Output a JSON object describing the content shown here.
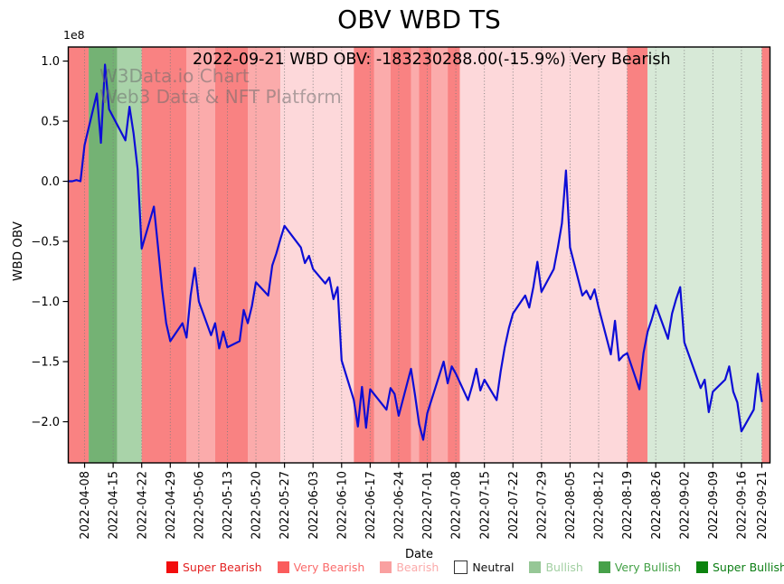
{
  "title": "OBV WBD TS",
  "subtitle": "2022-09-21 WBD OBV: -183230288.00(-15.9%) Very Bearish",
  "watermark": {
    "line1": "W3Data.io Chart",
    "line2": "Web3 Data & NFT Platform"
  },
  "chart_data": {
    "type": "line",
    "title": "OBV WBD TS",
    "xlabel": "Date",
    "ylabel": "WBD OBV",
    "y_offset_label": "1e8",
    "values_unit": "1e8",
    "ylim": [
      -2.342,
      1.117
    ],
    "x_domain": [
      "2022-04-04",
      "2022-09-23"
    ],
    "grid": "vertical-dotted",
    "line_color": "#0d0dd6",
    "y_ticks": [
      {
        "value": 1.0,
        "label": "1.0"
      },
      {
        "value": 0.5,
        "label": "0.5"
      },
      {
        "value": 0.0,
        "label": "0.0"
      },
      {
        "value": -0.5,
        "label": "−0.5"
      },
      {
        "value": -1.0,
        "label": "−1.0"
      },
      {
        "value": -1.5,
        "label": "−1.5"
      },
      {
        "value": -2.0,
        "label": "−2.0"
      }
    ],
    "x_ticks": [
      "2022-04-08",
      "2022-04-15",
      "2022-04-22",
      "2022-04-29",
      "2022-05-06",
      "2022-05-13",
      "2022-05-20",
      "2022-05-27",
      "2022-06-03",
      "2022-06-10",
      "2022-06-17",
      "2022-06-24",
      "2022-07-01",
      "2022-07-08",
      "2022-07-15",
      "2022-07-22",
      "2022-07-29",
      "2022-08-05",
      "2022-08-12",
      "2022-08-19",
      "2022-08-26",
      "2022-09-02",
      "2022-09-09",
      "2022-09-16",
      "2022-09-21"
    ],
    "bands": [
      {
        "from": "2022-04-04",
        "to": "2022-04-09",
        "sentiment": "Very Bearish",
        "color": "#f98282"
      },
      {
        "from": "2022-04-09",
        "to": "2022-04-16",
        "sentiment": "Very Bullish",
        "color": "#74b274"
      },
      {
        "from": "2022-04-16",
        "to": "2022-04-22",
        "sentiment": "Bullish",
        "color": "#a9d3a9"
      },
      {
        "from": "2022-04-22",
        "to": "2022-05-03",
        "sentiment": "Very Bearish",
        "color": "#f98282"
      },
      {
        "from": "2022-05-03",
        "to": "2022-05-10",
        "sentiment": "Bearish",
        "color": "#fbabab"
      },
      {
        "from": "2022-05-10",
        "to": "2022-05-18",
        "sentiment": "Very Bearish",
        "color": "#f98282"
      },
      {
        "from": "2022-05-18",
        "to": "2022-05-26",
        "sentiment": "Bearish",
        "color": "#fbabab"
      },
      {
        "from": "2022-05-26",
        "to": "2022-06-13",
        "sentiment": "Bearish",
        "color": "#fdd8da"
      },
      {
        "from": "2022-06-13",
        "to": "2022-06-18",
        "sentiment": "Very Bearish",
        "color": "#f98282"
      },
      {
        "from": "2022-06-18",
        "to": "2022-06-22",
        "sentiment": "Bearish",
        "color": "#fbabab"
      },
      {
        "from": "2022-06-22",
        "to": "2022-06-27",
        "sentiment": "Very Bearish",
        "color": "#f98282"
      },
      {
        "from": "2022-06-27",
        "to": "2022-06-29",
        "sentiment": "Bearish",
        "color": "#fbabab"
      },
      {
        "from": "2022-06-29",
        "to": "2022-07-02",
        "sentiment": "Very Bearish",
        "color": "#f98282"
      },
      {
        "from": "2022-07-02",
        "to": "2022-07-06",
        "sentiment": "Bearish",
        "color": "#fbabab"
      },
      {
        "from": "2022-07-06",
        "to": "2022-07-09",
        "sentiment": "Very Bearish",
        "color": "#f98282"
      },
      {
        "from": "2022-07-09",
        "to": "2022-08-19",
        "sentiment": "Bearish",
        "color": "#fdd8da"
      },
      {
        "from": "2022-08-19",
        "to": "2022-08-24",
        "sentiment": "Very Bearish",
        "color": "#f98282"
      },
      {
        "from": "2022-08-24",
        "to": "2022-09-21",
        "sentiment": "Bullish",
        "color": "#d7e9d7"
      },
      {
        "from": "2022-09-21",
        "to": "2022-09-23",
        "sentiment": "Very Bearish",
        "color": "#f98282"
      }
    ],
    "series": [
      {
        "name": "WBD OBV",
        "points_format": [
          "date",
          "obv_1e8"
        ],
        "points": [
          [
            "2022-04-04",
            0
          ],
          [
            "2022-04-05",
            0
          ],
          [
            "2022-04-06",
            0.01
          ],
          [
            "2022-04-07",
            0
          ],
          [
            "2022-04-08",
            0.3
          ],
          [
            "2022-04-11",
            0.73
          ],
          [
            "2022-04-12",
            0.32
          ],
          [
            "2022-04-13",
            0.97
          ],
          [
            "2022-04-14",
            0.6
          ],
          [
            "2022-04-18",
            0.34
          ],
          [
            "2022-04-19",
            0.62
          ],
          [
            "2022-04-20",
            0.4
          ],
          [
            "2022-04-21",
            0.1
          ],
          [
            "2022-04-22",
            -0.56
          ],
          [
            "2022-04-25",
            -0.21
          ],
          [
            "2022-04-26",
            -0.55
          ],
          [
            "2022-04-27",
            -0.9
          ],
          [
            "2022-04-28",
            -1.18
          ],
          [
            "2022-04-29",
            -1.33
          ],
          [
            "2022-05-02",
            -1.18
          ],
          [
            "2022-05-03",
            -1.3
          ],
          [
            "2022-05-04",
            -0.95
          ],
          [
            "2022-05-05",
            -0.72
          ],
          [
            "2022-05-06",
            -1.0
          ],
          [
            "2022-05-09",
            -1.28
          ],
          [
            "2022-05-10",
            -1.18
          ],
          [
            "2022-05-11",
            -1.39
          ],
          [
            "2022-05-12",
            -1.25
          ],
          [
            "2022-05-13",
            -1.38
          ],
          [
            "2022-05-16",
            -1.33
          ],
          [
            "2022-05-17",
            -1.07
          ],
          [
            "2022-05-18",
            -1.18
          ],
          [
            "2022-05-19",
            -1.04
          ],
          [
            "2022-05-20",
            -0.84
          ],
          [
            "2022-05-23",
            -0.95
          ],
          [
            "2022-05-24",
            -0.7
          ],
          [
            "2022-05-25",
            -0.6
          ],
          [
            "2022-05-26",
            -0.48
          ],
          [
            "2022-05-27",
            -0.37
          ],
          [
            "2022-05-31",
            -0.55
          ],
          [
            "2022-06-01",
            -0.68
          ],
          [
            "2022-06-02",
            -0.62
          ],
          [
            "2022-06-03",
            -0.73
          ],
          [
            "2022-06-06",
            -0.85
          ],
          [
            "2022-06-07",
            -0.8
          ],
          [
            "2022-06-08",
            -0.98
          ],
          [
            "2022-06-09",
            -0.88
          ],
          [
            "2022-06-10",
            -1.49
          ],
          [
            "2022-06-13",
            -1.82
          ],
          [
            "2022-06-14",
            -2.04
          ],
          [
            "2022-06-15",
            -1.71
          ],
          [
            "2022-06-16",
            -2.05
          ],
          [
            "2022-06-17",
            -1.73
          ],
          [
            "2022-06-21",
            -1.9
          ],
          [
            "2022-06-22",
            -1.72
          ],
          [
            "2022-06-23",
            -1.77
          ],
          [
            "2022-06-24",
            -1.95
          ],
          [
            "2022-06-27",
            -1.56
          ],
          [
            "2022-06-28",
            -1.78
          ],
          [
            "2022-06-29",
            -2.02
          ],
          [
            "2022-06-30",
            -2.15
          ],
          [
            "2022-07-01",
            -1.93
          ],
          [
            "2022-07-05",
            -1.5
          ],
          [
            "2022-07-06",
            -1.68
          ],
          [
            "2022-07-07",
            -1.54
          ],
          [
            "2022-07-08",
            -1.6
          ],
          [
            "2022-07-11",
            -1.82
          ],
          [
            "2022-07-12",
            -1.7
          ],
          [
            "2022-07-13",
            -1.56
          ],
          [
            "2022-07-14",
            -1.74
          ],
          [
            "2022-07-15",
            -1.65
          ],
          [
            "2022-07-18",
            -1.82
          ],
          [
            "2022-07-19",
            -1.58
          ],
          [
            "2022-07-20",
            -1.38
          ],
          [
            "2022-07-21",
            -1.22
          ],
          [
            "2022-07-22",
            -1.1
          ],
          [
            "2022-07-25",
            -0.95
          ],
          [
            "2022-07-26",
            -1.05
          ],
          [
            "2022-07-27",
            -0.88
          ],
          [
            "2022-07-28",
            -0.67
          ],
          [
            "2022-07-29",
            -0.92
          ],
          [
            "2022-08-01",
            -0.73
          ],
          [
            "2022-08-02",
            -0.55
          ],
          [
            "2022-08-03",
            -0.35
          ],
          [
            "2022-08-04",
            0.09
          ],
          [
            "2022-08-05",
            -0.55
          ],
          [
            "2022-08-08",
            -0.95
          ],
          [
            "2022-08-09",
            -0.91
          ],
          [
            "2022-08-10",
            -0.98
          ],
          [
            "2022-08-11",
            -0.9
          ],
          [
            "2022-08-12",
            -1.05
          ],
          [
            "2022-08-15",
            -1.44
          ],
          [
            "2022-08-16",
            -1.16
          ],
          [
            "2022-08-17",
            -1.49
          ],
          [
            "2022-08-18",
            -1.45
          ],
          [
            "2022-08-19",
            -1.43
          ],
          [
            "2022-08-22",
            -1.73
          ],
          [
            "2022-08-23",
            -1.43
          ],
          [
            "2022-08-24",
            -1.25
          ],
          [
            "2022-08-25",
            -1.15
          ],
          [
            "2022-08-26",
            -1.03
          ],
          [
            "2022-08-29",
            -1.31
          ],
          [
            "2022-08-30",
            -1.1
          ],
          [
            "2022-08-31",
            -0.98
          ],
          [
            "2022-09-01",
            -0.88
          ],
          [
            "2022-09-02",
            -1.34
          ],
          [
            "2022-09-06",
            -1.72
          ],
          [
            "2022-09-07",
            -1.65
          ],
          [
            "2022-09-08",
            -1.92
          ],
          [
            "2022-09-09",
            -1.75
          ],
          [
            "2022-09-12",
            -1.65
          ],
          [
            "2022-09-13",
            -1.54
          ],
          [
            "2022-09-14",
            -1.75
          ],
          [
            "2022-09-15",
            -1.84
          ],
          [
            "2022-09-16",
            -2.08
          ],
          [
            "2022-09-19",
            -1.9
          ],
          [
            "2022-09-20",
            -1.6
          ],
          [
            "2022-09-21",
            -1.83
          ]
        ]
      }
    ]
  },
  "legend": {
    "items": [
      {
        "label": "Super Bearish",
        "swatch": "#f20d0d",
        "text_color": "#e32222",
        "swatch_border": ""
      },
      {
        "label": "Very Bearish",
        "swatch": "#fa5c5c",
        "text_color": "#fa6b6b",
        "swatch_border": ""
      },
      {
        "label": "Bearish",
        "swatch": "#f9a0a0",
        "text_color": "#fbaaaa",
        "swatch_border": ""
      },
      {
        "label": "Neutral",
        "swatch": "#ffffff",
        "text_color": "#111111",
        "swatch_border": "#333333"
      },
      {
        "label": "Bullish",
        "swatch": "#96c796",
        "text_color": "#a2cfa2",
        "swatch_border": ""
      },
      {
        "label": "Very Bullish",
        "swatch": "#47a14a",
        "text_color": "#43a046",
        "swatch_border": ""
      },
      {
        "label": "Super Bullish",
        "swatch": "#0c830f",
        "text_color": "#0c7e14",
        "swatch_border": ""
      }
    ]
  }
}
